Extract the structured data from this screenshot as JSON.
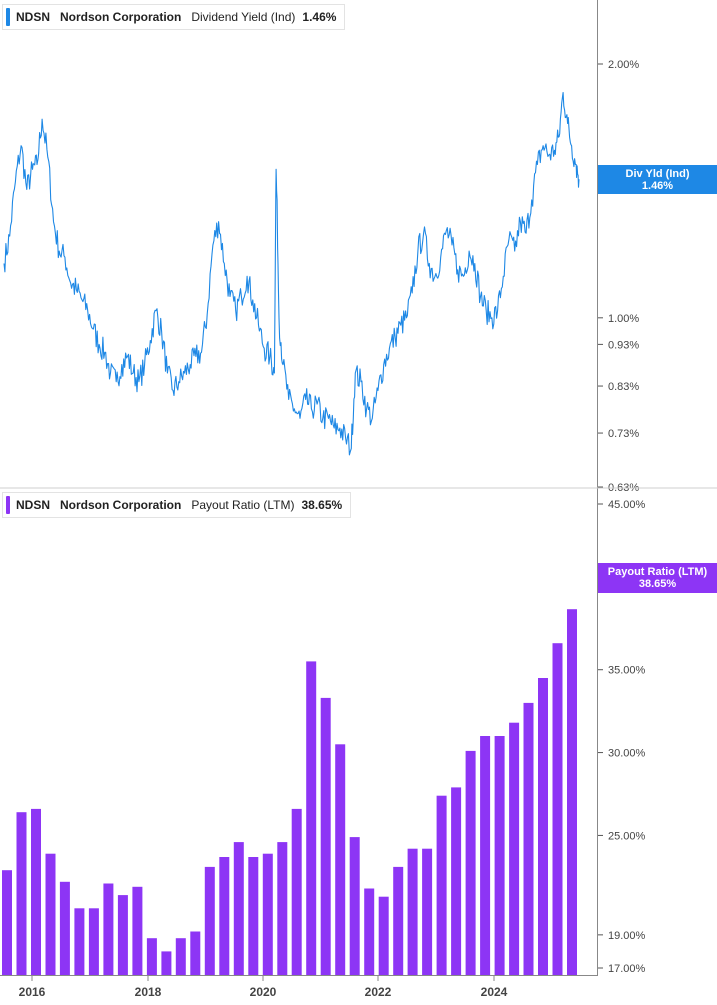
{
  "colors": {
    "yield": "#1e88e5",
    "payout": "#8d35f5",
    "axis": "#555555",
    "grid": "#d6d6d6"
  },
  "chart_data": [
    {
      "type": "line",
      "title": "NDSN Nordson Corporation Dividend Yield (Ind)",
      "legend": {
        "ticker": "NDSN",
        "company": "Nordson Corporation",
        "metric": "Dividend Yield (Ind)",
        "value": "1.46%"
      },
      "tag": {
        "label": "Div Yld (Ind)",
        "value": "1.46%"
      },
      "yscale": "log",
      "ylim": [
        0.63,
        2.2
      ],
      "yticks": [
        {
          "v": 2.0,
          "label": "2.00%"
        },
        {
          "v": 1.0,
          "label": "1.00%"
        },
        {
          "v": 0.93,
          "label": "0.93%"
        },
        {
          "v": 0.83,
          "label": "0.83%"
        },
        {
          "v": 0.73,
          "label": "0.73%"
        },
        {
          "v": 0.63,
          "label": "0.63%"
        }
      ],
      "x": [
        2015.45,
        2015.55,
        2015.65,
        2015.75,
        2015.85,
        2015.95,
        2016.03,
        2016.12,
        2016.22,
        2016.32,
        2016.42,
        2016.52,
        2016.62,
        2016.72,
        2016.82,
        2016.92,
        2017.02,
        2017.12,
        2017.22,
        2017.32,
        2017.42,
        2017.52,
        2017.62,
        2017.72,
        2017.82,
        2017.92,
        2018.02,
        2018.12,
        2018.22,
        2018.32,
        2018.42,
        2018.52,
        2018.62,
        2018.72,
        2018.82,
        2018.92,
        2019.02,
        2019.12,
        2019.22,
        2019.32,
        2019.42,
        2019.52,
        2019.62,
        2019.72,
        2019.82,
        2019.92,
        2020.02,
        2020.12,
        2020.2,
        2020.23,
        2020.28,
        2020.35,
        2020.45,
        2020.55,
        2020.65,
        2020.75,
        2020.85,
        2020.95,
        2021.05,
        2021.15,
        2021.25,
        2021.35,
        2021.45,
        2021.55,
        2021.62,
        2021.72,
        2021.82,
        2021.92,
        2022.02,
        2022.12,
        2022.22,
        2022.32,
        2022.42,
        2022.52,
        2022.62,
        2022.72,
        2022.82,
        2022.92,
        2023.02,
        2023.12,
        2023.22,
        2023.32,
        2023.42,
        2023.52,
        2023.62,
        2023.72,
        2023.82,
        2023.92,
        2024.02,
        2024.12,
        2024.22,
        2024.32,
        2024.42,
        2024.52,
        2024.62,
        2024.72,
        2024.82,
        2024.92,
        2025.02,
        2025.12,
        2025.2,
        2025.27,
        2025.35,
        2025.42,
        2025.5,
        2025.55
      ],
      "values": [
        1.16,
        1.25,
        1.45,
        1.6,
        1.42,
        1.5,
        1.52,
        1.72,
        1.55,
        1.3,
        1.2,
        1.18,
        1.1,
        1.08,
        1.05,
        1.02,
        0.97,
        0.93,
        0.91,
        0.86,
        0.84,
        0.88,
        0.9,
        0.86,
        0.84,
        0.88,
        0.94,
        1.02,
        0.96,
        0.86,
        0.82,
        0.84,
        0.86,
        0.88,
        0.9,
        0.91,
        1.01,
        1.22,
        1.3,
        1.16,
        1.06,
        1.02,
        1.06,
        1.12,
        1.05,
        0.98,
        0.92,
        0.9,
        0.86,
        1.5,
        1.0,
        0.88,
        0.8,
        0.78,
        0.76,
        0.8,
        0.78,
        0.79,
        0.76,
        0.76,
        0.74,
        0.74,
        0.72,
        0.7,
        0.86,
        0.84,
        0.78,
        0.76,
        0.82,
        0.88,
        0.92,
        0.95,
        0.98,
        1.0,
        1.07,
        1.2,
        1.26,
        1.16,
        1.12,
        1.18,
        1.27,
        1.22,
        1.14,
        1.12,
        1.2,
        1.16,
        1.06,
        1.02,
        1.0,
        1.02,
        1.12,
        1.24,
        1.2,
        1.3,
        1.26,
        1.38,
        1.52,
        1.6,
        1.56,
        1.58,
        1.64,
        1.85,
        1.7,
        1.6,
        1.52,
        1.46
      ]
    },
    {
      "type": "bar",
      "title": "NDSN Nordson Corporation Payout Ratio (LTM)",
      "legend": {
        "ticker": "NDSN",
        "company": "Nordson Corporation",
        "metric": "Payout Ratio (LTM)",
        "value": "38.65%"
      },
      "tag": {
        "label": "Payout Ratio (LTM)",
        "value": "38.65%"
      },
      "ylim": [
        17,
        45
      ],
      "yticks": [
        {
          "v": 45,
          "label": "45.00%"
        },
        {
          "v": 40,
          "label": "40.00%"
        },
        {
          "v": 35,
          "label": "35.00%"
        },
        {
          "v": 30,
          "label": "30.00%"
        },
        {
          "v": 25,
          "label": "25.00%"
        },
        {
          "v": 19,
          "label": "19.00%"
        },
        {
          "v": 17,
          "label": "17.00%"
        }
      ],
      "x": [
        2015.59,
        2015.84,
        2016.09,
        2016.34,
        2016.59,
        2016.84,
        2017.09,
        2017.34,
        2017.59,
        2017.84,
        2018.09,
        2018.34,
        2018.59,
        2018.84,
        2019.09,
        2019.34,
        2019.59,
        2019.84,
        2020.09,
        2020.34,
        2020.59,
        2020.84,
        2021.09,
        2021.34,
        2021.59,
        2021.84,
        2022.09,
        2022.34,
        2022.59,
        2022.84,
        2023.09,
        2023.34,
        2023.59,
        2023.84,
        2024.09,
        2024.34,
        2024.59,
        2024.84,
        2025.09,
        2025.34
      ],
      "values": [
        22.9,
        26.4,
        26.6,
        23.9,
        22.2,
        20.6,
        20.6,
        22.1,
        21.4,
        21.9,
        18.8,
        18.0,
        18.8,
        19.2,
        23.1,
        23.7,
        24.6,
        23.7,
        23.9,
        24.6,
        26.6,
        35.5,
        33.3,
        30.5,
        24.9,
        21.8,
        21.3,
        23.1,
        24.2,
        24.2,
        27.4,
        27.9,
        30.1,
        31.0,
        31.0,
        31.8,
        33.0,
        34.5,
        36.6,
        38.65
      ]
    }
  ],
  "xaxis": {
    "ticks": [
      {
        "v": 2016,
        "label": "2016"
      },
      {
        "v": 2018,
        "label": "2018"
      },
      {
        "v": 2020,
        "label": "2020"
      },
      {
        "v": 2022,
        "label": "2022"
      },
      {
        "v": 2024,
        "label": "2024"
      }
    ],
    "xlim": [
      2015.45,
      2025.75
    ]
  }
}
